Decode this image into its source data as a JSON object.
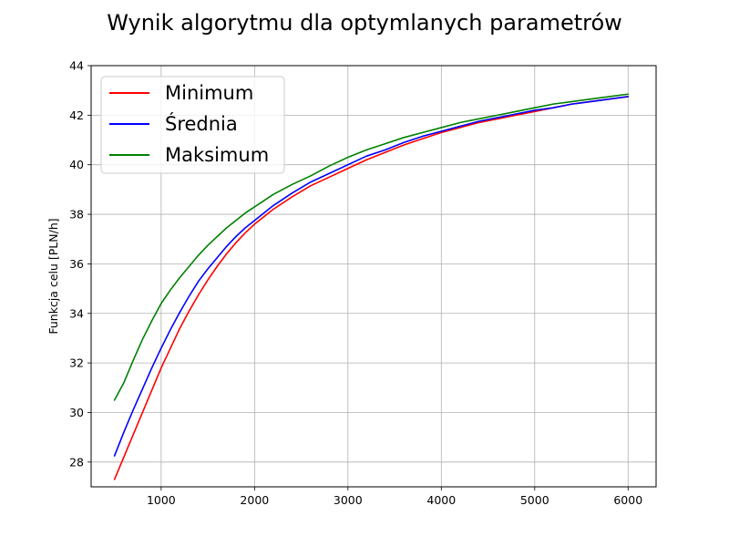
{
  "chart_data": {
    "type": "line",
    "title": "Wynik algorytmu dla optymlanych parametrów",
    "xlabel": "",
    "ylabel": "Funkcja celu [PLN/h]",
    "xlim": [
      250,
      6300
    ],
    "ylim": [
      27.0,
      44.0
    ],
    "xticks": [
      1000,
      2000,
      3000,
      4000,
      5000,
      6000
    ],
    "yticks": [
      28,
      30,
      32,
      34,
      36,
      38,
      40,
      42,
      44
    ],
    "grid": true,
    "legend_position": "top-left",
    "x": [
      500,
      600,
      700,
      800,
      900,
      1000,
      1100,
      1200,
      1300,
      1400,
      1500,
      1600,
      1700,
      1800,
      1900,
      2000,
      2200,
      2400,
      2600,
      2800,
      3000,
      3200,
      3400,
      3600,
      3800,
      4000,
      4200,
      4400,
      4600,
      4800,
      5000,
      5200,
      5400,
      5600,
      5800,
      6000
    ],
    "series": [
      {
        "name": "Minimum",
        "color": "#ff0000",
        "values": [
          27.3,
          28.2,
          29.1,
          30.0,
          30.9,
          31.8,
          32.6,
          33.4,
          34.1,
          34.75,
          35.35,
          35.9,
          36.4,
          36.85,
          37.25,
          37.6,
          38.2,
          38.7,
          39.15,
          39.5,
          39.85,
          40.2,
          40.5,
          40.8,
          41.05,
          41.3,
          41.5,
          41.7,
          41.85,
          42.0,
          42.15,
          42.3,
          42.45,
          42.55,
          42.65,
          42.75
        ]
      },
      {
        "name": "Średnia",
        "color": "#0000ff",
        "values": [
          28.25,
          29.2,
          30.1,
          30.95,
          31.8,
          32.6,
          33.35,
          34.05,
          34.7,
          35.3,
          35.8,
          36.25,
          36.7,
          37.1,
          37.45,
          37.75,
          38.35,
          38.85,
          39.3,
          39.65,
          40.0,
          40.35,
          40.6,
          40.9,
          41.15,
          41.35,
          41.55,
          41.75,
          41.9,
          42.05,
          42.2,
          42.3,
          42.45,
          42.55,
          42.65,
          42.75
        ]
      },
      {
        "name": "Maksimum",
        "color": "#008000",
        "values": [
          30.5,
          31.2,
          32.1,
          32.95,
          33.7,
          34.4,
          34.95,
          35.45,
          35.9,
          36.35,
          36.75,
          37.1,
          37.45,
          37.75,
          38.05,
          38.3,
          38.8,
          39.2,
          39.55,
          39.95,
          40.3,
          40.6,
          40.85,
          41.1,
          41.3,
          41.5,
          41.7,
          41.85,
          42.0,
          42.15,
          42.3,
          42.45,
          42.55,
          42.65,
          42.75,
          42.85
        ]
      }
    ]
  }
}
